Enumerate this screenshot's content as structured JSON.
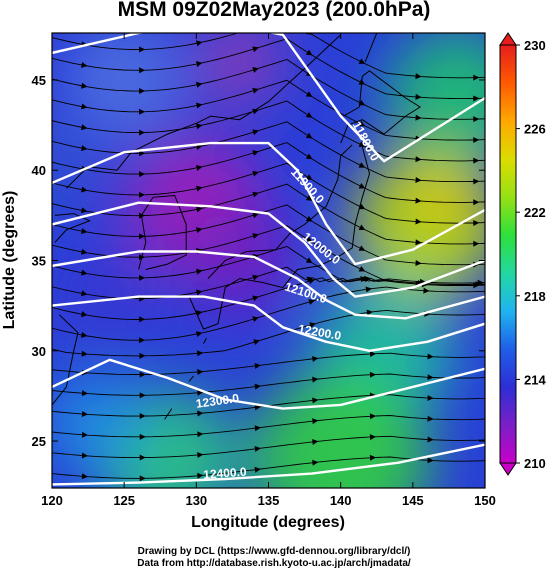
{
  "title": "MSM 09Z02May2023 (200.0hPa)",
  "map": {
    "x_axis": {
      "label": "Longitude (degrees)",
      "range": [
        120,
        150
      ],
      "ticks": [
        120,
        125,
        130,
        135,
        140,
        145,
        150
      ]
    },
    "y_axis": {
      "label": "Latitude  (degrees)",
      "range": [
        22.4,
        47.6
      ],
      "ticks": [
        25,
        30,
        35,
        40,
        45
      ]
    },
    "field": "temperature (colour shading)",
    "colorbar": {
      "ticks": [
        210,
        214,
        218,
        222,
        226,
        230
      ],
      "range": [
        210,
        230
      ],
      "colors": [
        "#c800c8",
        "#7a1fc8",
        "#2e2ed6",
        "#1f5fe8",
        "#20b4f0",
        "#22d8a0",
        "#2ee03c",
        "#96e014",
        "#dcdc00",
        "#ffa800",
        "#ff5a00",
        "#e61e1e"
      ]
    },
    "contours": [
      {
        "label": "11800.0",
        "lon": 141.5,
        "lat": 41.5
      },
      {
        "label": "11900.0",
        "lon": 137.5,
        "lat": 39.0
      },
      {
        "label": "12000.0",
        "lon": 138.5,
        "lat": 35.5
      },
      {
        "label": "12100.0",
        "lon": 137.5,
        "lat": 33.0
      },
      {
        "label": "12200.0",
        "lon": 138.5,
        "lat": 30.8
      },
      {
        "label": "12300.0",
        "lon": 131.5,
        "lat": 27.0
      },
      {
        "label": "12400.0",
        "lon": 132.0,
        "lat": 23.0
      }
    ],
    "streamlines": "wind streamlines with arrows (westerly jet)"
  },
  "credits": {
    "line1": "Drawing by DCL (https://www.gfd-dennou.org/library/dcl/)",
    "line2": "Data from http://database.rish.kyoto-u.ac.jp/arch/jmadata/"
  }
}
